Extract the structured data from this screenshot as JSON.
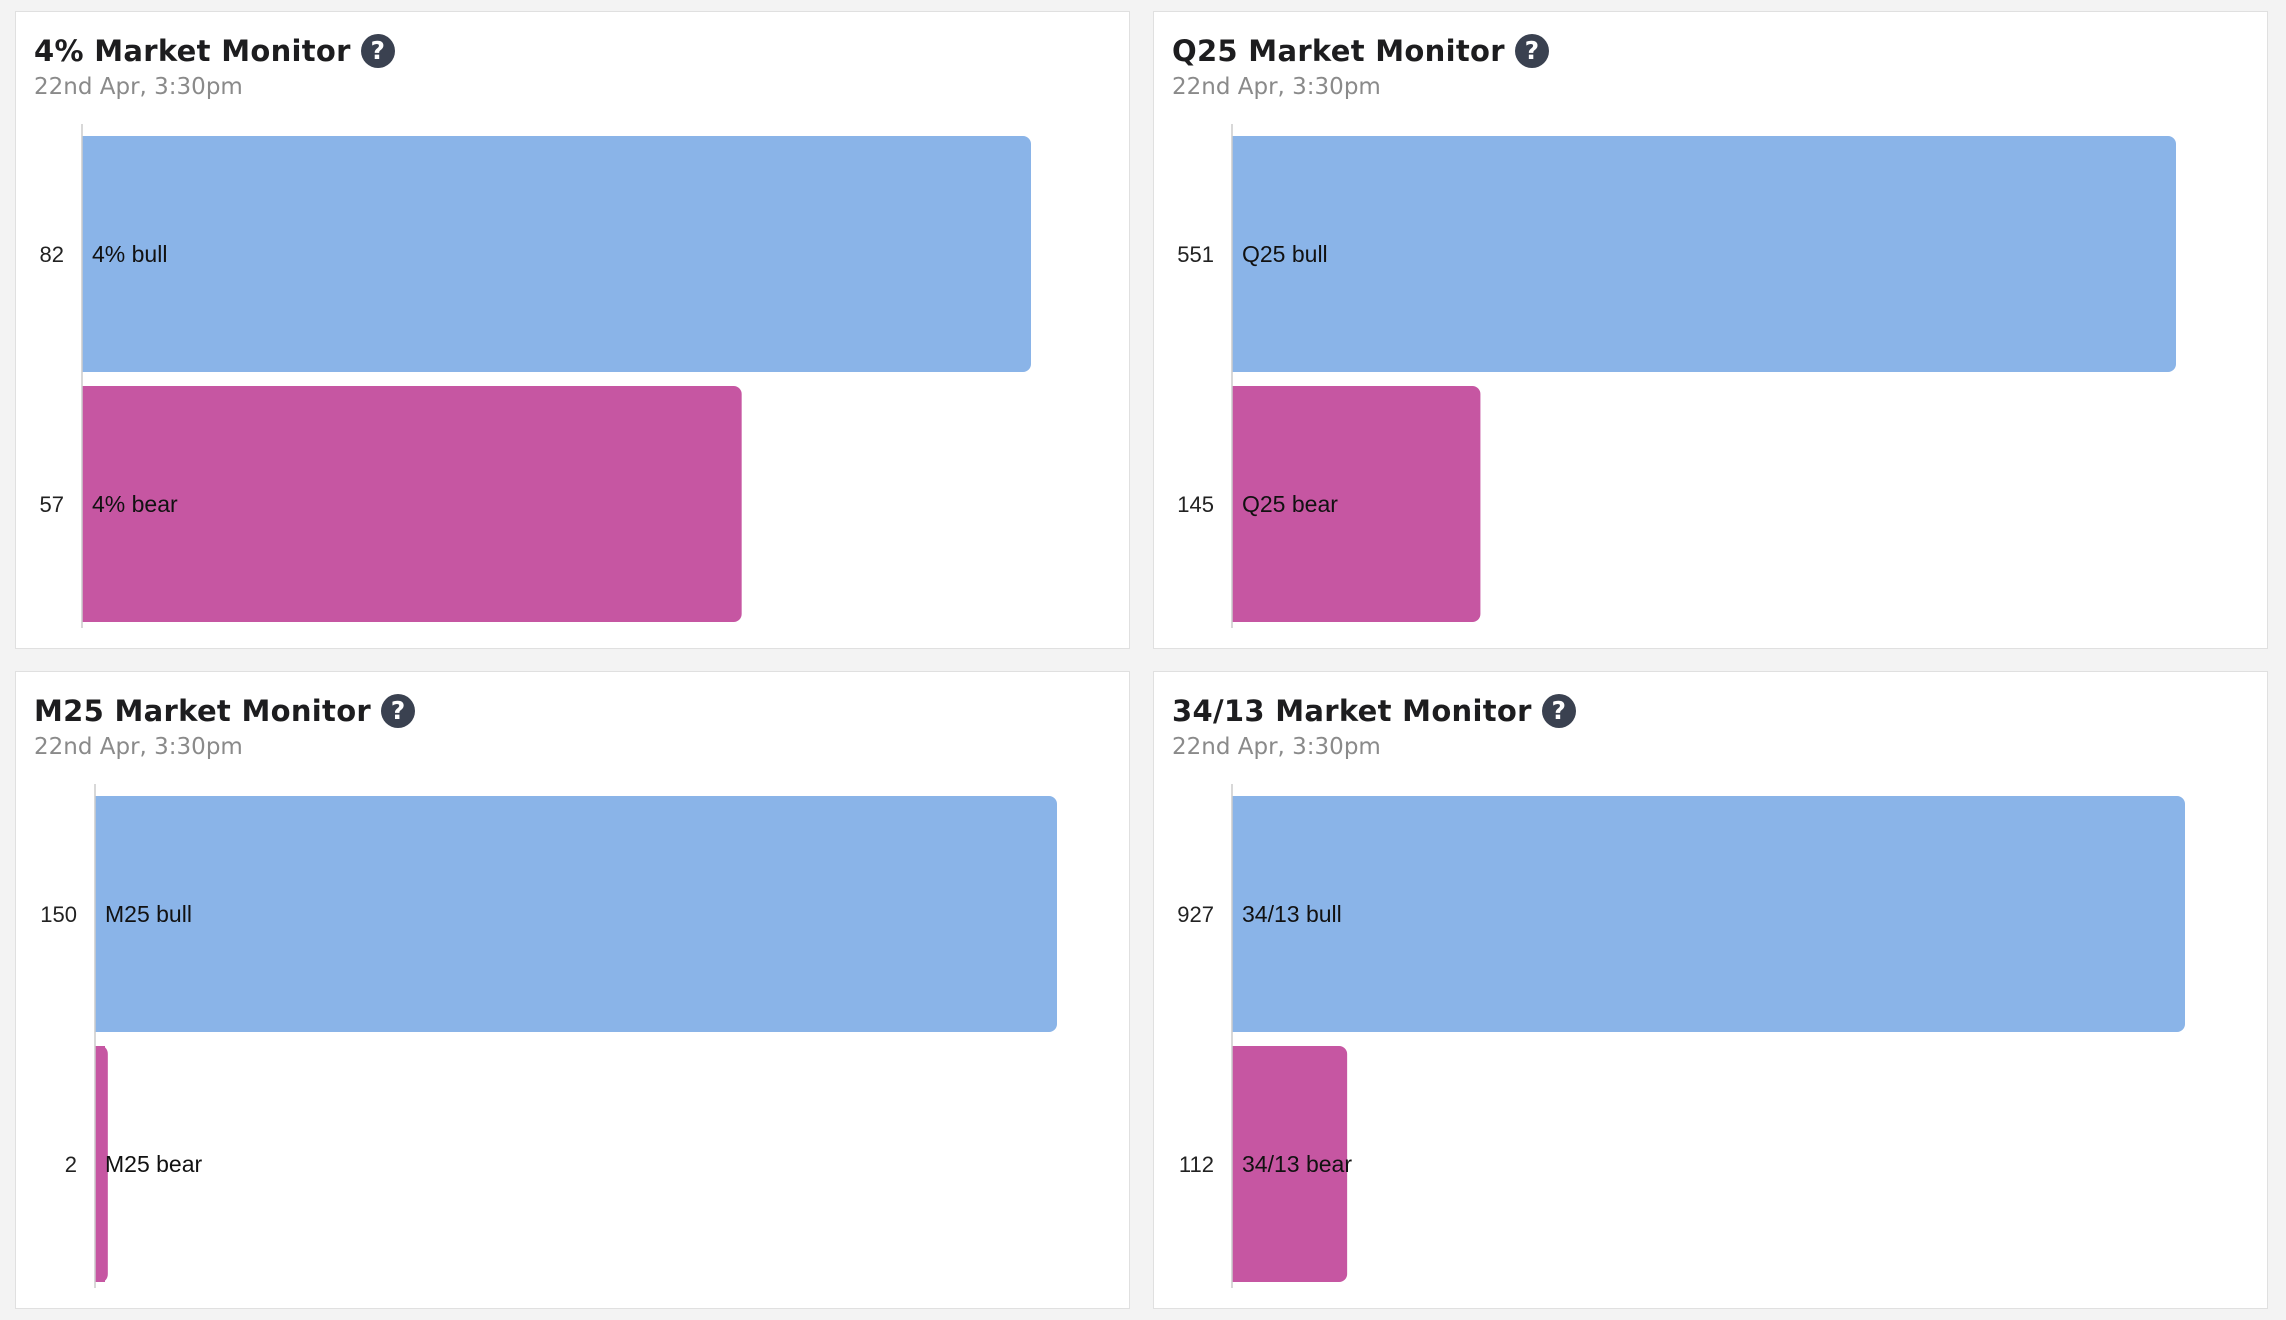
{
  "colors": {
    "bull": "#8ab4e8",
    "bear": "#c656a2",
    "axis": "#cccccc",
    "label": "#222222"
  },
  "panels": [
    {
      "title": "4% Market Monitor",
      "timestamp": "22nd Apr, 3:30pm",
      "help_icon": "question-mark-icon"
    },
    {
      "title": "Q25 Market Monitor",
      "timestamp": "22nd Apr, 3:30pm",
      "help_icon": "question-mark-icon"
    },
    {
      "title": "M25 Market Monitor",
      "timestamp": "22nd Apr, 3:30pm",
      "help_icon": "question-mark-icon"
    },
    {
      "title": "34/13 Market Monitor",
      "timestamp": "22nd Apr, 3:30pm",
      "help_icon": "question-mark-icon"
    }
  ],
  "chart_data": [
    {
      "type": "bar",
      "orientation": "horizontal",
      "title": "4% Market Monitor",
      "categories": [
        "4% bull",
        "4% bear"
      ],
      "values": [
        82,
        57
      ],
      "value_labels": [
        "82",
        "57"
      ]
    },
    {
      "type": "bar",
      "orientation": "horizontal",
      "title": "Q25 Market Monitor",
      "categories": [
        "Q25 bull",
        "Q25 bear"
      ],
      "values": [
        551,
        145
      ],
      "value_labels": [
        "551",
        "145"
      ]
    },
    {
      "type": "bar",
      "orientation": "horizontal",
      "title": "M25 Market Monitor",
      "categories": [
        "M25 bull",
        "M25 bear"
      ],
      "values": [
        150,
        2
      ],
      "value_labels": [
        "150",
        "2"
      ]
    },
    {
      "type": "bar",
      "orientation": "horizontal",
      "title": "34/13 Market Monitor",
      "categories": [
        "34/13 bull",
        "34/13 bear"
      ],
      "values": [
        927,
        112
      ],
      "value_labels": [
        "927",
        "112"
      ]
    }
  ]
}
